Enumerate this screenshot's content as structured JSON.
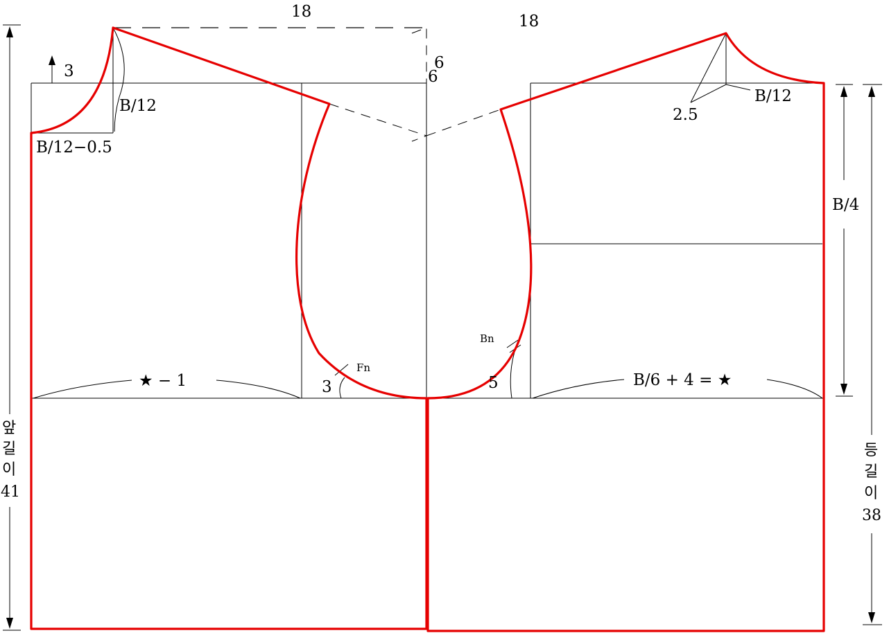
{
  "labels": {
    "top_width_front": "18",
    "top_width_back": "18",
    "shoulder_rise_3": "3",
    "shoulder_drop_6a": "6",
    "shoulder_drop_6b": "6",
    "front_neck_depth": "B/12",
    "front_neck_width": "B/12−0.5",
    "back_neck_width": "B/12",
    "back_neck_rise": "2.5",
    "back_armhole_depth": "B/4",
    "front_chest": "★ − 1",
    "back_chest": "B/6 + 4 = ★",
    "front_armhole_angle": "3",
    "back_armhole_angle": "5",
    "front_notch": "Fn",
    "back_notch": "Bn",
    "front_length": [
      "앞",
      "길",
      "이",
      "41"
    ],
    "back_length": [
      "등",
      "길",
      "이",
      "38"
    ]
  },
  "colors": {
    "outline": "#e60000",
    "guides": "#000000",
    "background": "#ffffff"
  }
}
